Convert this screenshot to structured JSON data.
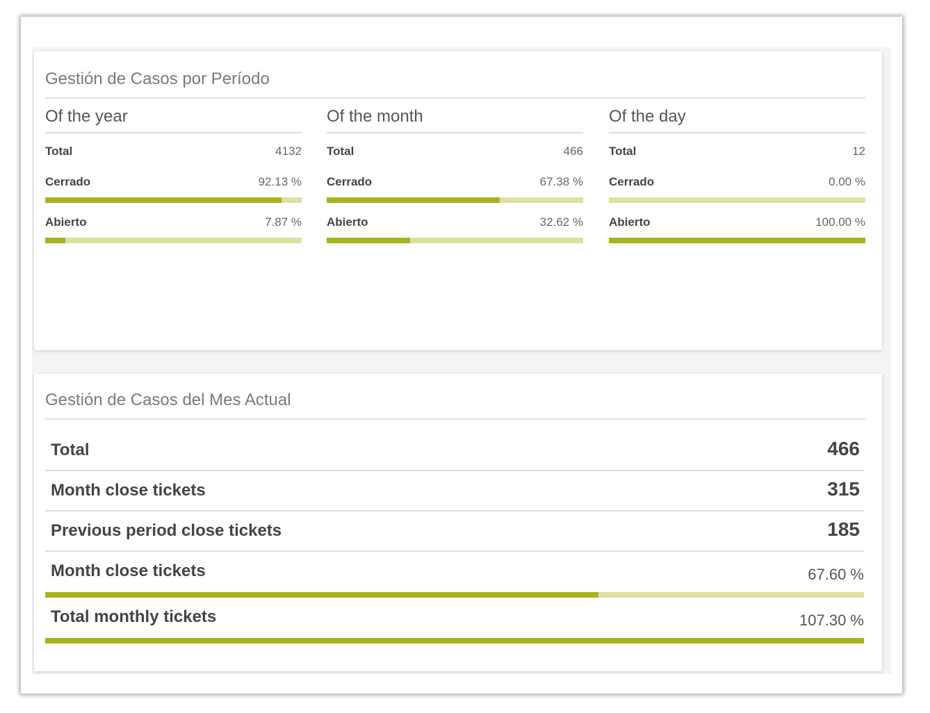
{
  "period_panel": {
    "title": "Gestión de Casos por Período",
    "columns": [
      {
        "title": "Of the year",
        "total_label": "Total",
        "total_value": "4132",
        "closed_label": "Cerrado",
        "closed_value": "92.13 %",
        "closed_fraction": 0.9213,
        "open_label": "Abierto",
        "open_value": "7.87 %",
        "open_fraction": 0.0787
      },
      {
        "title": "Of the month",
        "total_label": "Total",
        "total_value": "466",
        "closed_label": "Cerrado",
        "closed_value": "67.38 %",
        "closed_fraction": 0.6738,
        "open_label": "Abierto",
        "open_value": "32.62 %",
        "open_fraction": 0.3262
      },
      {
        "title": "Of the day",
        "total_label": "Total",
        "total_value": "12",
        "closed_label": "Cerrado",
        "closed_value": "0.00 %",
        "closed_fraction": 0.0,
        "open_label": "Abierto",
        "open_value": "100.00 %",
        "open_fraction": 1.0
      }
    ]
  },
  "month_panel": {
    "title": "Gestión de Casos del Mes Actual",
    "rows": [
      {
        "label": "Total",
        "value": "466"
      },
      {
        "label": "Month close tickets",
        "value": "315"
      },
      {
        "label": "Previous period close tickets",
        "value": "185"
      }
    ],
    "percent_rows": [
      {
        "label": "Month close tickets",
        "value": "67.60 %",
        "fraction": 0.676
      },
      {
        "label": "Total monthly tickets",
        "value": "107.30 %",
        "fraction": 1.0
      }
    ]
  },
  "colors": {
    "bar_fill": "#a6b420",
    "bar_track": "#dee0a0"
  }
}
